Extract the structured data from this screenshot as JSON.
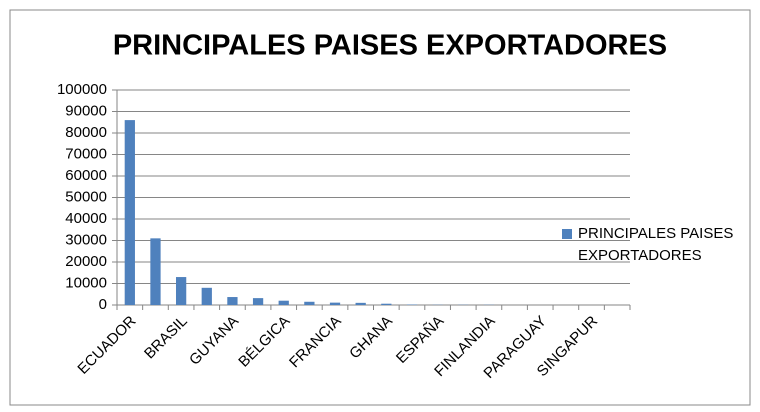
{
  "chart_data": {
    "type": "bar",
    "title": "PRINCIPALES PAISES EXPORTADORES",
    "categories": [
      "ECUADOR",
      null,
      "BRASIL",
      null,
      "GUYANA",
      null,
      "BÉLGICA",
      null,
      "FRANCIA",
      null,
      "GHANA",
      null,
      "ESPAÑA",
      null,
      "FINLANDIA",
      null,
      "PARAGUAY",
      null,
      "SINGAPUR",
      null
    ],
    "series": [
      {
        "name": "PRINCIPALES PAISES EXPORTADORES",
        "color": "#4f81bd",
        "values": [
          86000,
          31000,
          13000,
          8000,
          3700,
          3200,
          2000,
          1500,
          1100,
          1000,
          600,
          200,
          100,
          100,
          100,
          0,
          0,
          0,
          0,
          0
        ]
      }
    ],
    "ylim": [
      0,
      100000
    ],
    "yticks": [
      0,
      10000,
      20000,
      30000,
      40000,
      50000,
      60000,
      70000,
      80000,
      90000,
      100000
    ],
    "grid": true,
    "legend": "right"
  }
}
